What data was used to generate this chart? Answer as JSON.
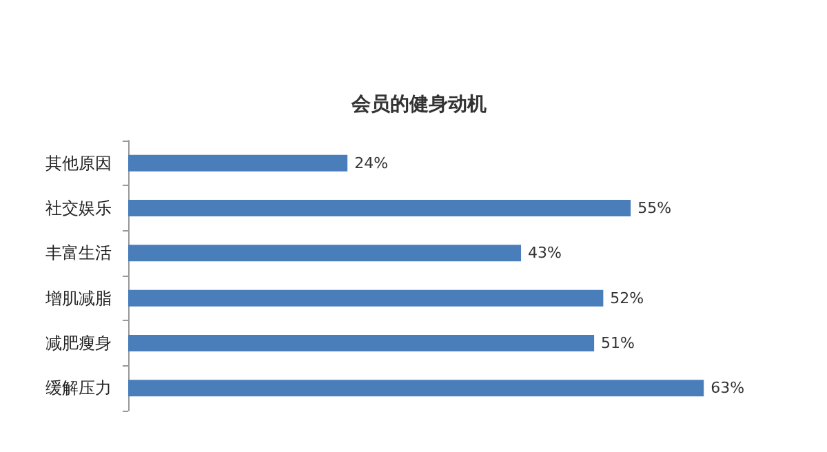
{
  "chart_data": {
    "type": "bar",
    "orientation": "horizontal",
    "title": "会员的健身动机",
    "categories": [
      "其他原因",
      "社交娱乐",
      "丰富生活",
      "增肌减脂",
      "减肥瘦身",
      "缓解压力"
    ],
    "values": [
      24,
      55,
      43,
      52,
      51,
      63
    ],
    "value_labels": [
      "24%",
      "55%",
      "43%",
      "52%",
      "51%",
      "63%"
    ],
    "color": "#4a7ebb"
  }
}
